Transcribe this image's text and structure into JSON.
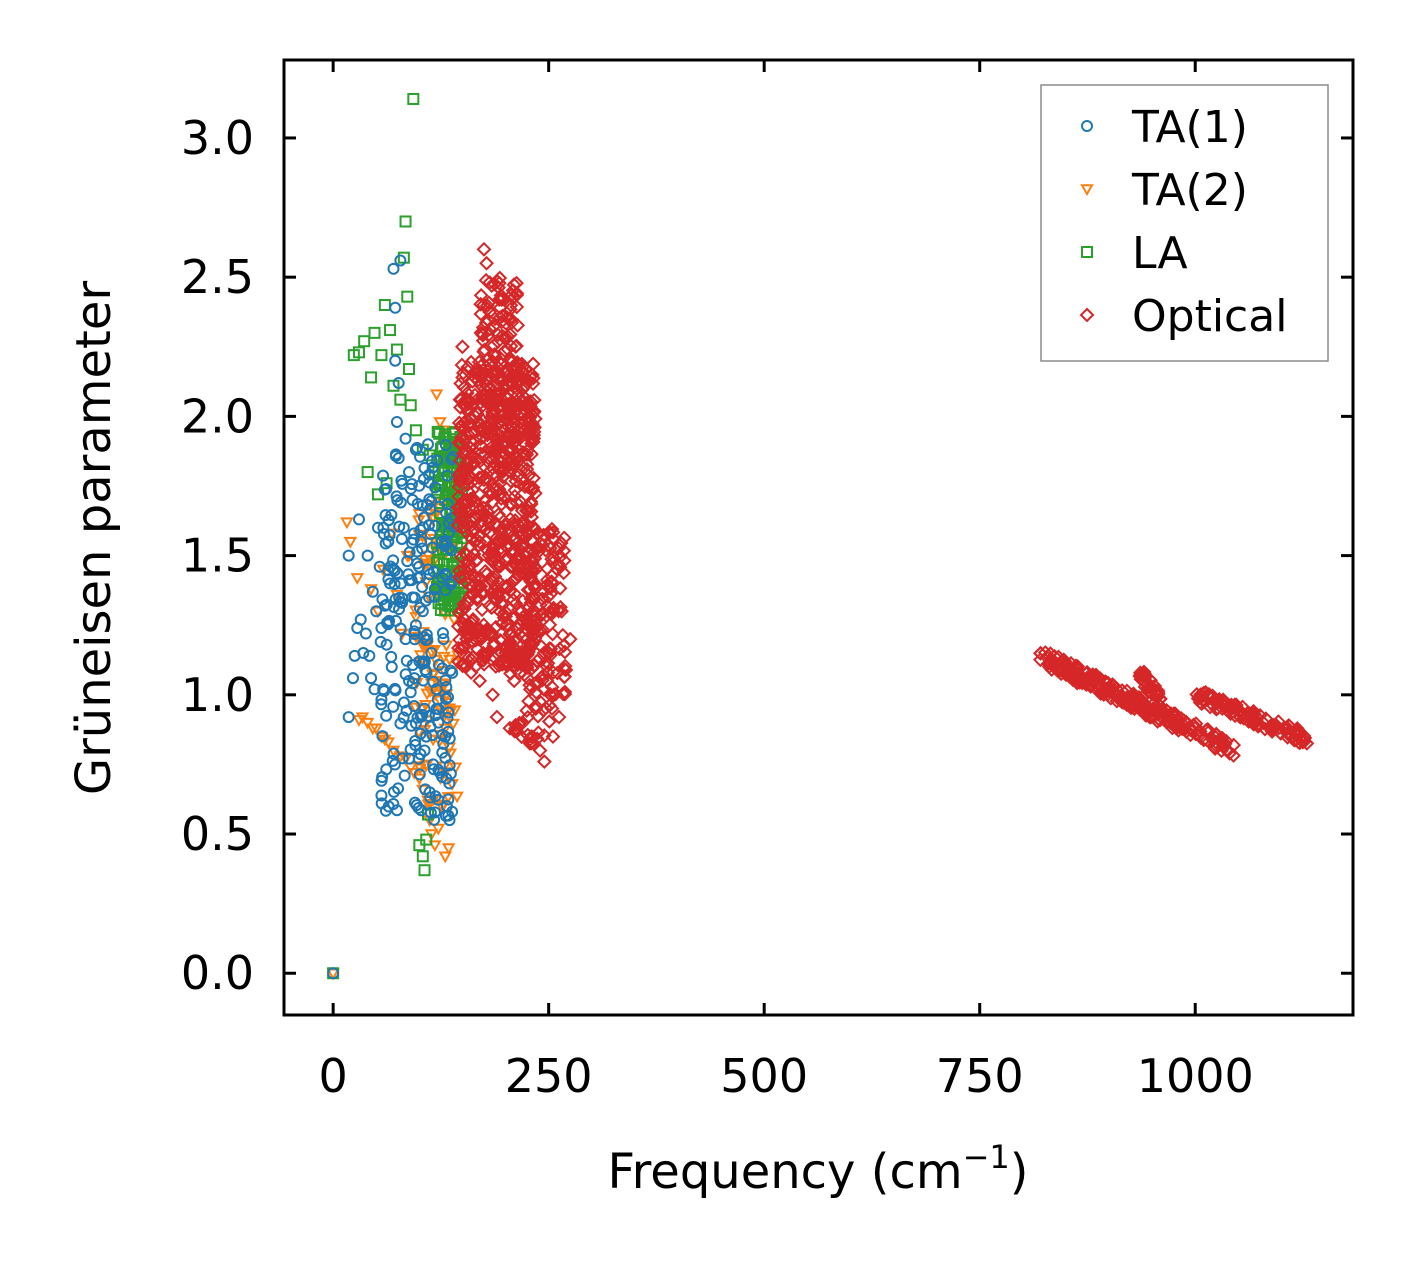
{
  "chart_data": {
    "type": "scatter",
    "title": "",
    "xlabel": "Frequency (cm",
    "xlabel_sup": "−1",
    "xlabel_close": ")",
    "ylabel": "Grüneisen parameter",
    "xlim": [
      -57,
      1183
    ],
    "ylim": [
      -0.15,
      3.28
    ],
    "xticks": [
      0,
      250,
      500,
      750,
      1000
    ],
    "xtick_labels": [
      "0",
      "250",
      "500",
      "750",
      "1000"
    ],
    "yticks": [
      0.0,
      0.5,
      1.0,
      1.5,
      2.0,
      2.5,
      3.0
    ],
    "ytick_labels": [
      "0.0",
      "0.5",
      "1.0",
      "1.5",
      "2.0",
      "2.5",
      "3.0"
    ],
    "grid": false,
    "legend_position": "top-right",
    "series": [
      {
        "name": "TA(1)",
        "marker": "circle",
        "color": "#1f77b4",
        "points": [
          [
            0,
            0
          ],
          [
            18,
            1.5
          ],
          [
            18,
            0.92
          ],
          [
            23,
            1.06
          ],
          [
            25,
            1.14
          ],
          [
            28,
            1.24
          ],
          [
            30,
            1.63
          ],
          [
            32,
            1.27
          ],
          [
            35,
            1.15
          ],
          [
            38,
            1.22
          ],
          [
            40,
            1.5
          ],
          [
            42,
            1.14
          ],
          [
            44,
            1.06
          ],
          [
            46,
            1.37
          ],
          [
            48,
            1.02
          ],
          [
            50,
            1.3
          ],
          [
            52,
            1.6
          ],
          [
            54,
            1.46
          ],
          [
            56,
            1.24
          ],
          [
            58,
            1.02
          ],
          [
            60,
            1.32
          ],
          [
            62,
            1.18
          ],
          [
            64,
            1.55
          ],
          [
            66,
            1.4
          ],
          [
            68,
            1.1
          ],
          [
            70,
            2.53
          ],
          [
            72,
            2.39
          ],
          [
            74,
            1.98
          ],
          [
            76,
            1.85
          ],
          [
            78,
            2.56
          ],
          [
            80,
            1.33
          ],
          [
            82,
            1.6
          ],
          [
            84,
            1.2
          ],
          [
            86,
            1.48
          ],
          [
            88,
            1.05
          ],
          [
            90,
            1.74
          ],
          [
            92,
            1.35
          ],
          [
            94,
            1.58
          ],
          [
            96,
            1.25
          ],
          [
            98,
            1.42
          ],
          [
            100,
            1.12
          ],
          [
            102,
            1.55
          ],
          [
            104,
            1.3
          ],
          [
            106,
            0.95
          ],
          [
            108,
            0.85
          ],
          [
            110,
            1.45
          ],
          [
            112,
            0.65
          ],
          [
            114,
            1.15
          ],
          [
            116,
            0.75
          ],
          [
            118,
            1.38
          ],
          [
            120,
            1.02
          ],
          [
            122,
            0.9
          ],
          [
            124,
            0.72
          ],
          [
            126,
            1.55
          ],
          [
            128,
            1.2
          ],
          [
            130,
            0.85
          ],
          [
            132,
            0.6
          ],
          [
            135,
            0.55
          ],
          [
            138,
            0.58
          ],
          [
            72,
            2.2
          ],
          [
            76,
            2.12
          ],
          [
            84,
            1.92
          ],
          [
            88,
            1.8
          ],
          [
            104,
            1.68
          ],
          [
            96,
            1.88
          ],
          [
            110,
            1.9
          ],
          [
            92,
            1.7
          ]
        ],
        "clusters": [
          {
            "x": [
              55,
              140
            ],
            "y": [
              0.55,
              1.9
            ],
            "n": 220
          }
        ]
      },
      {
        "name": "TA(2)",
        "marker": "triangle-down",
        "color": "#ff7f0e",
        "points": [
          [
            0,
            0
          ],
          [
            16,
            1.62
          ],
          [
            20,
            1.55
          ],
          [
            28,
            1.42
          ],
          [
            30,
            0.91
          ],
          [
            34,
            0.92
          ],
          [
            40,
            0.9
          ],
          [
            44,
            1.38
          ],
          [
            46,
            0.88
          ],
          [
            50,
            0.88
          ],
          [
            52,
            1.3
          ],
          [
            56,
            0.85
          ],
          [
            58,
            1.45
          ],
          [
            60,
            0.84
          ],
          [
            64,
            0.83
          ],
          [
            68,
            1.58
          ],
          [
            70,
            0.8
          ],
          [
            74,
            1.36
          ],
          [
            78,
            0.78
          ],
          [
            80,
            1.22
          ],
          [
            84,
            0.77
          ],
          [
            88,
            1.5
          ],
          [
            90,
            0.74
          ],
          [
            94,
            0.72
          ],
          [
            96,
            1.28
          ],
          [
            100,
            0.7
          ],
          [
            104,
            0.66
          ],
          [
            106,
            1.18
          ],
          [
            110,
            0.62
          ],
          [
            112,
            0.55
          ],
          [
            114,
            0.5
          ],
          [
            118,
            0.46
          ],
          [
            120,
            1.05
          ],
          [
            122,
            0.52
          ],
          [
            126,
            0.6
          ],
          [
            128,
            1.95
          ],
          [
            130,
            0.42
          ],
          [
            134,
            0.45
          ],
          [
            138,
            0.68
          ],
          [
            142,
            0.74
          ],
          [
            120,
            2.08
          ],
          [
            124,
            1.98
          ],
          [
            132,
            1.85
          ],
          [
            140,
            1.75
          ],
          [
            100,
            1.65
          ],
          [
            86,
            1.5
          ]
        ],
        "clusters": [
          {
            "x": [
              95,
              145
            ],
            "y": [
              0.6,
              1.7
            ],
            "n": 110
          }
        ]
      },
      {
        "name": "LA",
        "marker": "square",
        "color": "#2ca02c",
        "points": [
          [
            0,
            0
          ],
          [
            24,
            2.22
          ],
          [
            30,
            2.23
          ],
          [
            36,
            2.27
          ],
          [
            40,
            1.8
          ],
          [
            44,
            2.14
          ],
          [
            48,
            2.3
          ],
          [
            52,
            1.72
          ],
          [
            56,
            2.22
          ],
          [
            60,
            2.4
          ],
          [
            62,
            1.76
          ],
          [
            66,
            2.31
          ],
          [
            70,
            2.11
          ],
          [
            74,
            2.24
          ],
          [
            78,
            2.06
          ],
          [
            82,
            2.57
          ],
          [
            84,
            2.7
          ],
          [
            86,
            2.43
          ],
          [
            88,
            2.17
          ],
          [
            90,
            2.04
          ],
          [
            93,
            3.14
          ],
          [
            96,
            1.95
          ],
          [
            100,
            0.46
          ],
          [
            104,
            0.42
          ],
          [
            106,
            0.37
          ],
          [
            108,
            0.48
          ],
          [
            110,
            0.57
          ],
          [
            104,
            1.88
          ],
          [
            112,
            1.86
          ],
          [
            118,
            1.8
          ],
          [
            124,
            1.75
          ],
          [
            130,
            1.7
          ],
          [
            136,
            1.65
          ],
          [
            140,
            1.62
          ],
          [
            144,
            1.5
          ],
          [
            146,
            1.4
          ]
        ],
        "clusters": [
          {
            "x": [
              120,
              150
            ],
            "y": [
              1.3,
              1.95
            ],
            "n": 150
          }
        ]
      },
      {
        "name": "Optical",
        "marker": "diamond",
        "color": "#d62728",
        "points": [
          [
            150,
            2.25
          ],
          [
            175,
            2.6
          ],
          [
            178,
            2.55
          ],
          [
            170,
            1.05
          ],
          [
            185,
            1.0
          ],
          [
            190,
            0.92
          ],
          [
            205,
            0.88
          ],
          [
            220,
            0.9
          ],
          [
            230,
            0.85
          ],
          [
            240,
            0.8
          ],
          [
            245,
            0.76
          ],
          [
            255,
            0.85
          ],
          [
            262,
            0.92
          ],
          [
            248,
            1.05
          ],
          [
            256,
            1.0
          ],
          [
            275,
            1.2
          ],
          [
            265,
            1.3
          ],
          [
            160,
            1.08
          ],
          [
            155,
            1.2
          ],
          [
            195,
            1.15
          ],
          [
            210,
            1.05
          ],
          [
            235,
            0.95
          ]
        ],
        "clusters": [
          {
            "x": [
              145,
              235
            ],
            "y": [
              1.1,
              2.2
            ],
            "n": 700
          },
          {
            "x": [
              170,
              215
            ],
            "y": [
              1.8,
              2.5
            ],
            "n": 160
          },
          {
            "x": [
              225,
              270
            ],
            "y": [
              1.0,
              1.6
            ],
            "n": 120
          },
          {
            "x": [
              200,
              255
            ],
            "y": [
              0.82,
              1.2
            ],
            "n": 60
          }
        ],
        "bands": [
          {
            "x_start": 820,
            "x_end": 1045,
            "y_start": 1.14,
            "y_end": 0.8,
            "width": 0.06,
            "n": 200
          },
          {
            "x_start": 935,
            "x_end": 960,
            "y_start": 1.08,
            "y_end": 0.98,
            "width": 0.05,
            "n": 30
          },
          {
            "x_start": 1000,
            "x_end": 1130,
            "y_start": 1.0,
            "y_end": 0.84,
            "width": 0.05,
            "n": 120
          },
          {
            "x_start": 850,
            "x_end": 980,
            "y_start": 1.08,
            "y_end": 0.9,
            "width": 0.04,
            "n": 80
          }
        ]
      }
    ]
  }
}
